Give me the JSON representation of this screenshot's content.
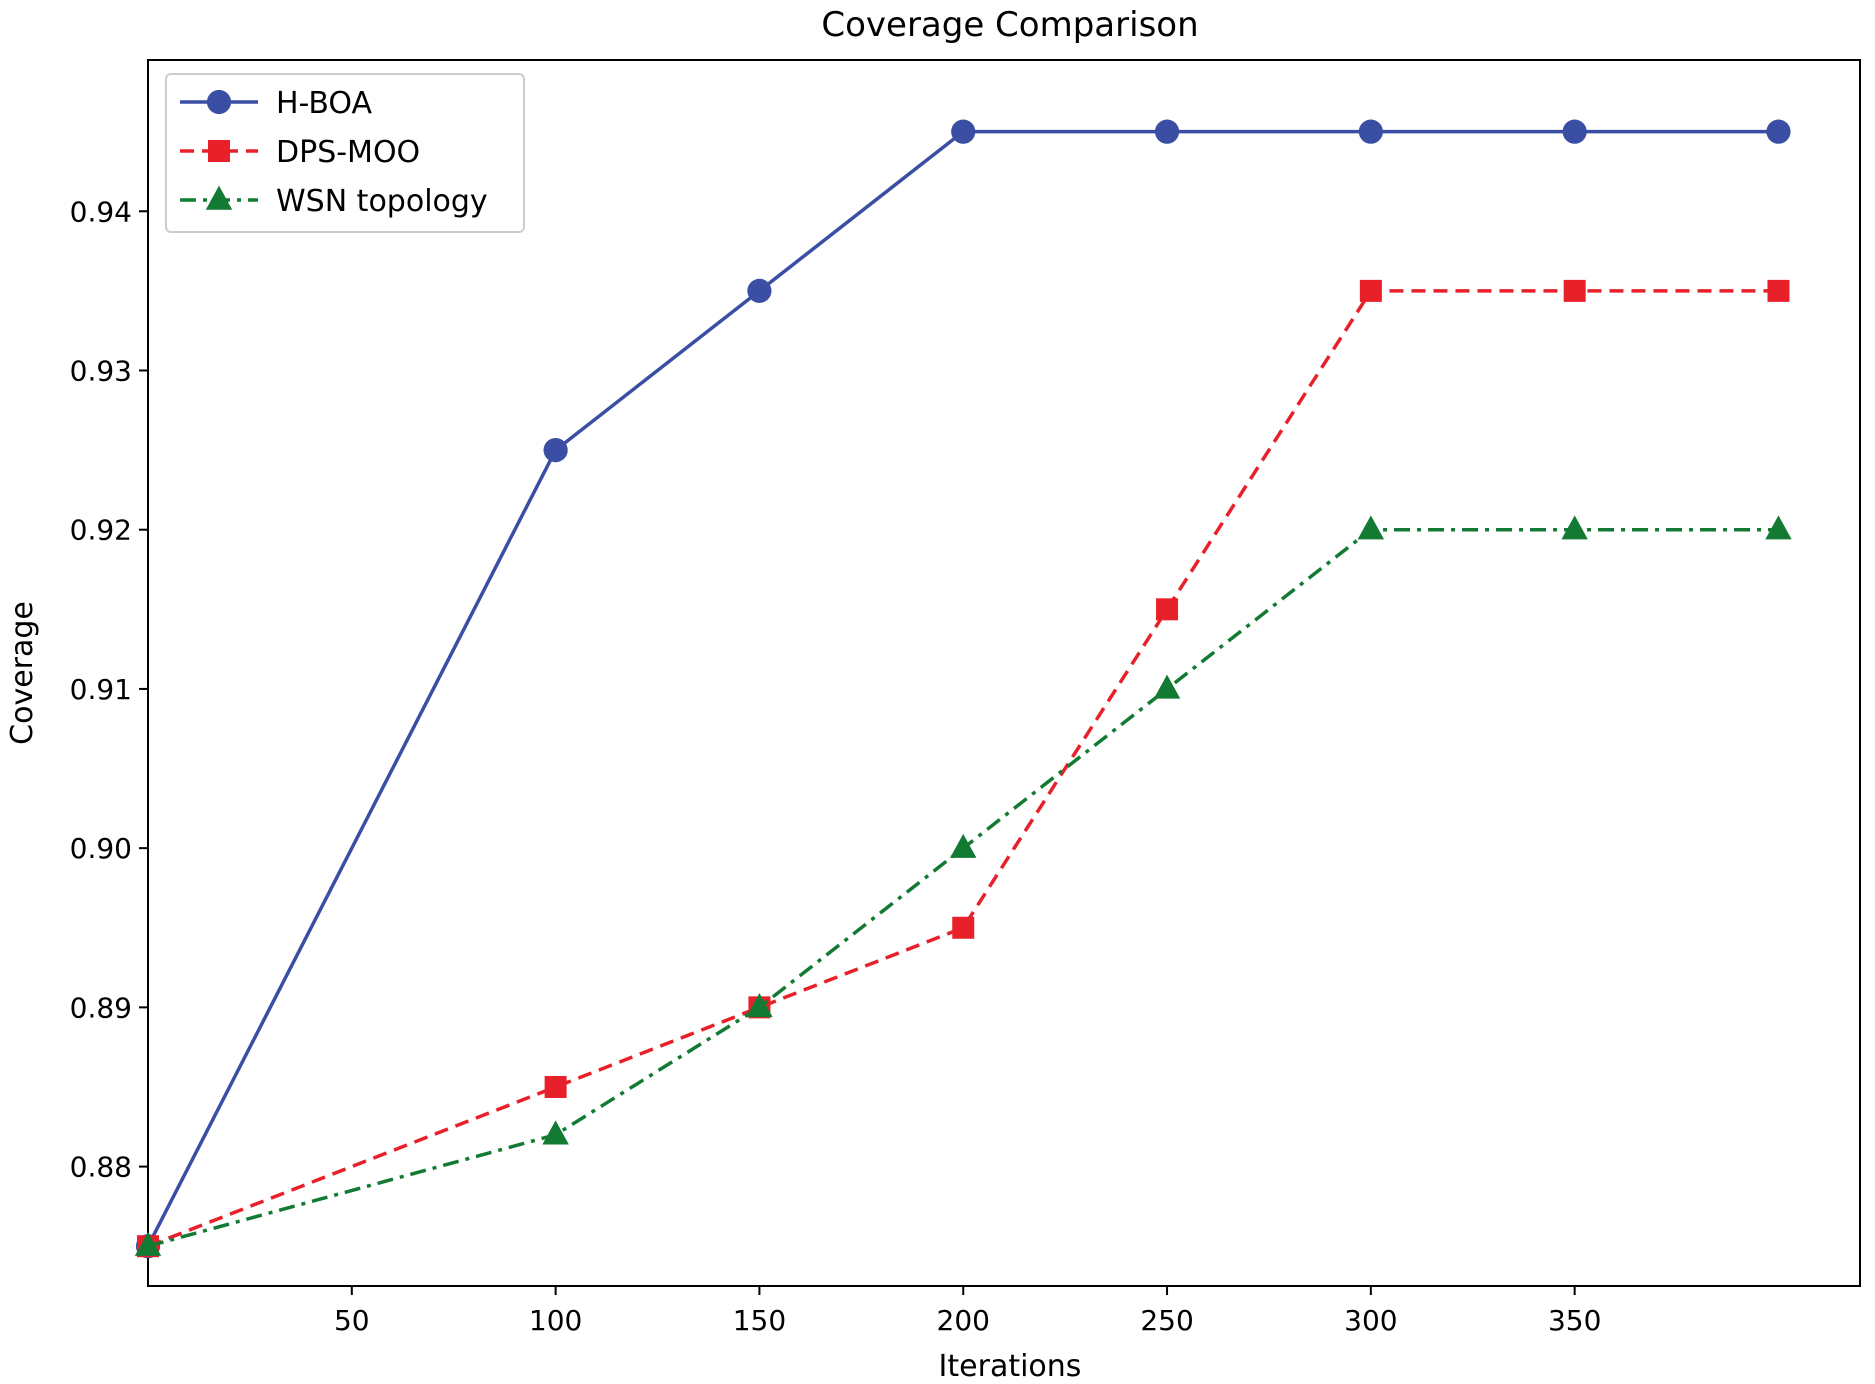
{
  "chart_data": {
    "type": "line",
    "title": "Coverage Comparison",
    "xlabel": "Iterations",
    "ylabel": "Coverage",
    "xlim": [
      0,
      420
    ],
    "ylim": [
      0.8725,
      0.9495
    ],
    "xticks": [
      50,
      100,
      150,
      200,
      250,
      300,
      350
    ],
    "xtick_labels": [
      "50",
      "100",
      "150",
      "200",
      "250",
      "300",
      "350"
    ],
    "yticks": [
      0.88,
      0.89,
      0.9,
      0.91,
      0.92,
      0.93,
      0.94
    ],
    "ytick_labels": [
      "0.88",
      "0.89",
      "0.90",
      "0.91",
      "0.92",
      "0.93",
      "0.94"
    ],
    "grid": false,
    "legend_position": "top-left",
    "x": [
      0,
      100,
      150,
      200,
      250,
      300,
      350,
      400
    ],
    "series": [
      {
        "name": "H-BOA",
        "color": "#3a4fa3",
        "line_style": "solid",
        "marker": "circle",
        "values": [
          0.875,
          0.925,
          0.935,
          0.945,
          0.945,
          0.945,
          0.945,
          0.945
        ]
      },
      {
        "name": "DPS-MOO",
        "color": "#e8202a",
        "line_style": "dashed",
        "marker": "square",
        "values": [
          0.875,
          0.885,
          0.89,
          0.895,
          0.915,
          0.935,
          0.935,
          0.935
        ]
      },
      {
        "name": "WSN topology",
        "color": "#127a32",
        "line_style": "dashdot",
        "marker": "triangle",
        "values": [
          0.875,
          0.882,
          0.89,
          0.9,
          0.91,
          0.92,
          0.92,
          0.92
        ]
      }
    ]
  }
}
